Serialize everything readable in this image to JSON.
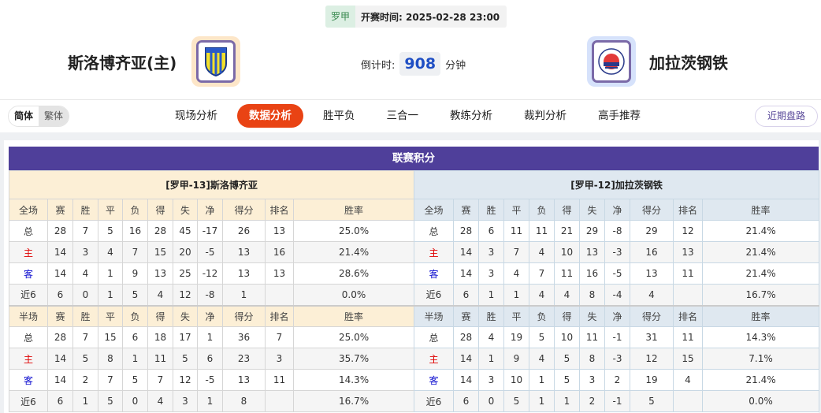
{
  "match": {
    "league": "罗甲",
    "time_label": "开赛时间:",
    "time": "2025-02-28 23:00",
    "home": "斯洛博齐亚(主)",
    "away": "加拉茨钢铁",
    "countdown_label": "倒计时:",
    "countdown_value": "908",
    "countdown_unit": "分钟"
  },
  "nav": {
    "lang_simplified": "简体",
    "lang_traditional": "繁体",
    "tabs": [
      "现场分析",
      "数据分析",
      "胜平负",
      "三合一",
      "教练分析",
      "裁判分析",
      "高手推荐"
    ],
    "active_tab": "数据分析",
    "recent_button": "近期盘路"
  },
  "colors": {
    "title_bar": "#4f3f9a",
    "active_tab": "#e94314",
    "home_header": "#fcefd6",
    "away_header": "#dfe8f0"
  },
  "standings": {
    "title": "联赛积分",
    "columns_full": [
      "全场",
      "赛",
      "胜",
      "平",
      "负",
      "得",
      "失",
      "净",
      "得分",
      "排名",
      "胜率"
    ],
    "columns_half": [
      "半场",
      "赛",
      "胜",
      "平",
      "负",
      "得",
      "失",
      "净",
      "得分",
      "排名",
      "胜率"
    ],
    "home": {
      "header": "[罗甲-13]斯洛博齐亚",
      "full": [
        [
          "总",
          "28",
          "7",
          "5",
          "16",
          "28",
          "45",
          "-17",
          "26",
          "13",
          "25.0%"
        ],
        [
          "主",
          "14",
          "3",
          "4",
          "7",
          "15",
          "20",
          "-5",
          "13",
          "16",
          "21.4%"
        ],
        [
          "客",
          "14",
          "4",
          "1",
          "9",
          "13",
          "25",
          "-12",
          "13",
          "13",
          "28.6%"
        ],
        [
          "近6",
          "6",
          "0",
          "1",
          "5",
          "4",
          "12",
          "-8",
          "1",
          "",
          "0.0%"
        ]
      ],
      "half": [
        [
          "总",
          "28",
          "7",
          "15",
          "6",
          "18",
          "17",
          "1",
          "36",
          "7",
          "25.0%"
        ],
        [
          "主",
          "14",
          "5",
          "8",
          "1",
          "11",
          "5",
          "6",
          "23",
          "3",
          "35.7%"
        ],
        [
          "客",
          "14",
          "2",
          "7",
          "5",
          "7",
          "12",
          "-5",
          "13",
          "11",
          "14.3%"
        ],
        [
          "近6",
          "6",
          "1",
          "5",
          "0",
          "4",
          "3",
          "1",
          "8",
          "",
          "16.7%"
        ]
      ]
    },
    "away": {
      "header": "[罗甲-12]加拉茨钢铁",
      "full": [
        [
          "总",
          "28",
          "6",
          "11",
          "11",
          "21",
          "29",
          "-8",
          "29",
          "12",
          "21.4%"
        ],
        [
          "主",
          "14",
          "3",
          "7",
          "4",
          "10",
          "13",
          "-3",
          "16",
          "13",
          "21.4%"
        ],
        [
          "客",
          "14",
          "3",
          "4",
          "7",
          "11",
          "16",
          "-5",
          "13",
          "11",
          "21.4%"
        ],
        [
          "近6",
          "6",
          "1",
          "1",
          "4",
          "4",
          "8",
          "-4",
          "4",
          "",
          "16.7%"
        ]
      ],
      "half": [
        [
          "总",
          "28",
          "4",
          "19",
          "5",
          "10",
          "11",
          "-1",
          "31",
          "11",
          "14.3%"
        ],
        [
          "主",
          "14",
          "1",
          "9",
          "4",
          "5",
          "8",
          "-3",
          "12",
          "15",
          "7.1%"
        ],
        [
          "客",
          "14",
          "3",
          "10",
          "1",
          "5",
          "3",
          "2",
          "19",
          "4",
          "21.4%"
        ],
        [
          "近6",
          "6",
          "0",
          "5",
          "1",
          "1",
          "2",
          "-1",
          "5",
          "",
          "0.0%"
        ]
      ]
    }
  }
}
